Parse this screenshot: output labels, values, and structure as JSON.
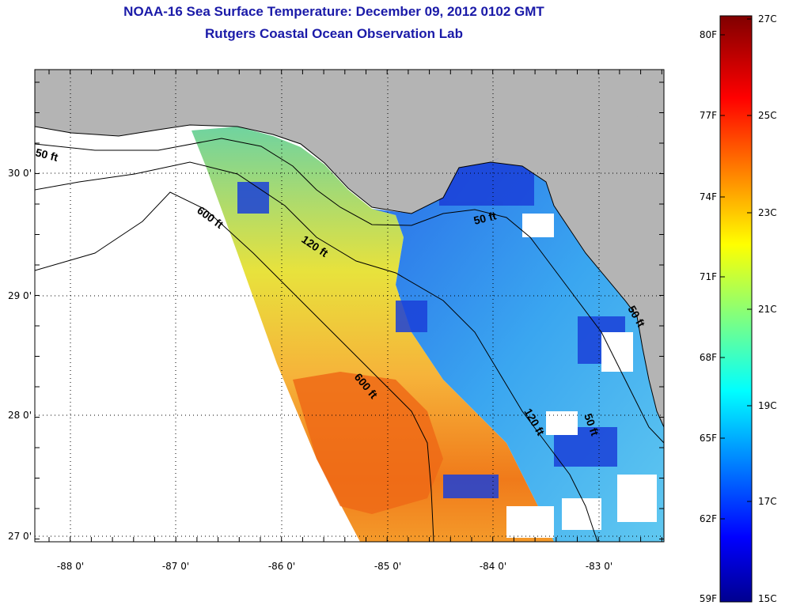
{
  "title": {
    "line1": "NOAA-16 Sea Surface Temperature:  December 09, 2012 0102 GMT",
    "line2": "Rutgers Coastal Ocean Observation Lab"
  },
  "axes": {
    "lat_labels": [
      "30 0'",
      "29 0'",
      "28 0'",
      "27 0'"
    ],
    "lon_labels": [
      "-88 0'",
      "-87 0'",
      "-86 0'",
      "-85 0'",
      "-84 0'",
      "-83 0'"
    ]
  },
  "contours": {
    "labels": [
      "50 ft",
      "600 ft",
      "120 ft",
      "50 ft",
      "600 ft",
      "120 ft",
      "50 ft",
      "50 ft"
    ]
  },
  "colorbar": {
    "fahrenheit": [
      "80F",
      "77F",
      "74F",
      "71F",
      "68F",
      "65F",
      "62F",
      "59F"
    ],
    "celsius": [
      "27C",
      "25C",
      "23C",
      "21C",
      "19C",
      "17C",
      "15C"
    ],
    "min_c": 15,
    "max_c": 27
  },
  "colors": {
    "title": "#1a1aa8",
    "land": "#b4b4b4",
    "no_data": "#ffffff",
    "jet_low": "#00008f",
    "jet_high": "#800000"
  }
}
